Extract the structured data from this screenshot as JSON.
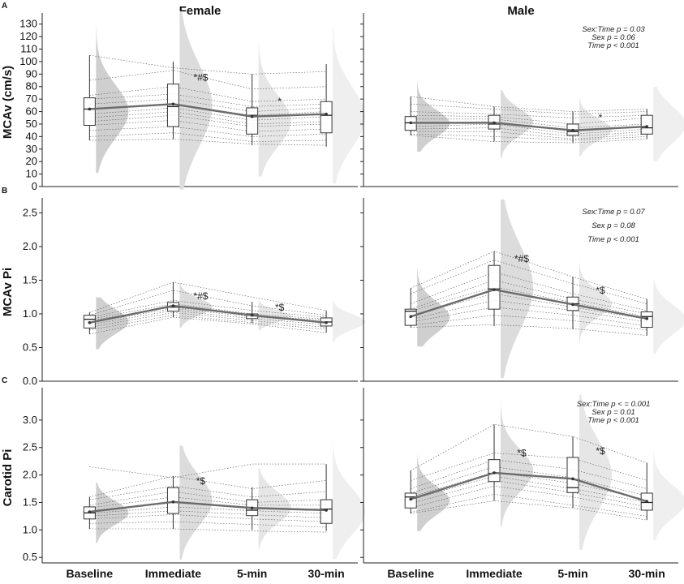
{
  "chart_data": {
    "type": "raincloud-boxplot",
    "columns": [
      "Female",
      "Male"
    ],
    "x_categories": [
      "Baseline",
      "Immediate",
      "5-min",
      "30-min"
    ],
    "rows": [
      {
        "label": "A",
        "ylabel": "MCAv (cm/s)",
        "ylim": [
          0,
          135
        ],
        "yticks": [
          0,
          10,
          20,
          30,
          40,
          50,
          60,
          70,
          80,
          90,
          100,
          110,
          120,
          130
        ],
        "stats_text": [
          "Sex:Time p = 0.03",
          "Sex p = 0.06",
          "Time p < 0.001"
        ],
        "panels": [
          {
            "sex": "Female",
            "means": [
              62,
              66,
              56,
              58
            ],
            "boxes": [
              {
                "min": 37,
                "q1": 49,
                "median": 62,
                "q3": 71,
                "max": 105
              },
              {
                "min": 38,
                "q1": 48,
                "median": 64,
                "q3": 82,
                "max": 100
              },
              {
                "min": 33,
                "q1": 42,
                "median": 57,
                "q3": 63,
                "max": 90
              },
              {
                "min": 32,
                "q1": 43,
                "median": 57,
                "q3": 68,
                "max": 98
              }
            ],
            "significance": [
              "",
              "*#$",
              "*",
              ""
            ],
            "individuals": [
              [
                105,
                95,
                90,
                92
              ],
              [
                85,
                93,
                78,
                80
              ],
              [
                73,
                80,
                68,
                70
              ],
              [
                70,
                74,
                64,
                66
              ],
              [
                66,
                70,
                60,
                63
              ],
              [
                62,
                66,
                57,
                60
              ],
              [
                58,
                63,
                53,
                56
              ],
              [
                55,
                60,
                50,
                52
              ],
              [
                52,
                57,
                48,
                50
              ],
              [
                49,
                53,
                44,
                46
              ],
              [
                45,
                48,
                40,
                42
              ],
              [
                40,
                43,
                36,
                37
              ],
              [
                37,
                38,
                34,
                33
              ]
            ]
          },
          {
            "sex": "Male",
            "means": [
              51,
              51,
              45,
              48
            ],
            "boxes": [
              {
                "min": 41,
                "q1": 45,
                "median": 51,
                "q3": 56,
                "max": 72
              },
              {
                "min": 36,
                "q1": 46,
                "median": 50,
                "q3": 57,
                "max": 64
              },
              {
                "min": 35,
                "q1": 41,
                "median": 44,
                "q3": 50,
                "max": 60
              },
              {
                "min": 38,
                "q1": 42,
                "median": 47,
                "q3": 57,
                "max": 62
              }
            ],
            "significance": [
              "",
              "",
              "*",
              ""
            ],
            "individuals": [
              [
                72,
                64,
                60,
                62
              ],
              [
                66,
                62,
                58,
                60
              ],
              [
                60,
                58,
                55,
                57
              ],
              [
                57,
                56,
                50,
                55
              ],
              [
                54,
                54,
                47,
                50
              ],
              [
                51,
                52,
                44,
                48
              ],
              [
                48,
                50,
                42,
                46
              ],
              [
                46,
                47,
                40,
                44
              ],
              [
                44,
                44,
                38,
                42
              ],
              [
                42,
                40,
                37,
                40
              ],
              [
                41,
                36,
                35,
                38
              ]
            ]
          }
        ]
      },
      {
        "label": "B",
        "ylabel": "MCAv Pi",
        "ylim": [
          0,
          2.65
        ],
        "yticks": [
          0.0,
          0.5,
          1.0,
          1.5,
          2.0,
          2.5
        ],
        "stats_text": [
          "Sex:Time p = 0.07",
          "Sex p = 0.08",
          "Time p < 0.001"
        ],
        "panels": [
          {
            "sex": "Female",
            "means": [
              0.87,
              1.12,
              0.98,
              0.87
            ],
            "boxes": [
              {
                "min": 0.7,
                "q1": 0.79,
                "median": 0.92,
                "q3": 0.98,
                "max": 1.02
              },
              {
                "min": 0.95,
                "q1": 1.04,
                "median": 1.1,
                "q3": 1.17,
                "max": 1.47
              },
              {
                "min": 0.86,
                "q1": 0.93,
                "median": 0.98,
                "q3": 1.0,
                "max": 1.18
              },
              {
                "min": 0.72,
                "q1": 0.82,
                "median": 0.88,
                "q3": 0.94,
                "max": 1.05
              }
            ],
            "significance": [
              "",
              "*#$",
              "*$",
              ""
            ],
            "individuals": [
              [
                1.02,
                1.47,
                1.25,
                1.05
              ],
              [
                0.98,
                1.35,
                1.12,
                0.98
              ],
              [
                0.95,
                1.2,
                1.05,
                0.95
              ],
              [
                0.92,
                1.15,
                1.0,
                0.92
              ],
              [
                0.9,
                1.1,
                0.98,
                0.9
              ],
              [
                0.87,
                1.08,
                0.96,
                0.87
              ],
              [
                0.84,
                1.05,
                0.93,
                0.84
              ],
              [
                0.8,
                1.02,
                0.9,
                0.8
              ],
              [
                0.76,
                0.98,
                0.87,
                0.77
              ],
              [
                0.7,
                0.95,
                0.85,
                0.72
              ]
            ]
          },
          {
            "sex": "Male",
            "means": [
              0.96,
              1.36,
              1.14,
              0.93
            ],
            "boxes": [
              {
                "min": 0.8,
                "q1": 0.83,
                "median": 1.04,
                "q3": 1.07,
                "max": 1.38
              },
              {
                "min": 0.82,
                "q1": 1.07,
                "median": 1.37,
                "q3": 1.72,
                "max": 1.93
              },
              {
                "min": 0.77,
                "q1": 1.05,
                "median": 1.15,
                "q3": 1.25,
                "max": 1.55
              },
              {
                "min": 0.68,
                "q1": 0.8,
                "median": 0.96,
                "q3": 1.03,
                "max": 1.22
              }
            ],
            "significance": [
              "",
              "*#$",
              "*$",
              ""
            ],
            "individuals": [
              [
                1.38,
                1.93,
                1.55,
                1.22
              ],
              [
                1.3,
                1.8,
                1.45,
                1.15
              ],
              [
                1.15,
                1.62,
                1.3,
                1.05
              ],
              [
                1.07,
                1.5,
                1.22,
                1.0
              ],
              [
                1.04,
                1.4,
                1.17,
                0.96
              ],
              [
                0.98,
                1.3,
                1.1,
                0.92
              ],
              [
                0.92,
                1.2,
                1.05,
                0.88
              ],
              [
                0.88,
                1.1,
                0.98,
                0.82
              ],
              [
                0.83,
                0.98,
                0.9,
                0.76
              ],
              [
                0.8,
                0.84,
                0.78,
                0.68
              ]
            ]
          }
        ]
      },
      {
        "label": "C",
        "ylabel": "Carotid Pi",
        "ylim": [
          0.4,
          3.5
        ],
        "yticks": [
          0.5,
          1.0,
          1.5,
          2.0,
          2.5,
          3.0
        ],
        "stats_text": [
          "Sex:Time p < = 0.001",
          "Sex p = 0.01",
          "Time p < 0.001"
        ],
        "panels": [
          {
            "sex": "Female",
            "means": [
              1.33,
              1.51,
              1.4,
              1.36
            ],
            "boxes": [
              {
                "min": 1.02,
                "q1": 1.2,
                "median": 1.31,
                "q3": 1.42,
                "max": 1.6
              },
              {
                "min": 1.02,
                "q1": 1.3,
                "median": 1.5,
                "q3": 1.77,
                "max": 1.98
              },
              {
                "min": 1.0,
                "q1": 1.26,
                "median": 1.36,
                "q3": 1.55,
                "max": 1.78
              },
              {
                "min": 0.98,
                "q1": 1.12,
                "median": 1.38,
                "q3": 1.55,
                "max": 2.2
              }
            ],
            "significance": [
              "",
              "*$",
              "",
              ""
            ],
            "individuals": [
              [
                2.15,
                1.95,
                2.2,
                2.2
              ],
              [
                1.6,
                1.98,
                1.75,
                1.9
              ],
              [
                1.55,
                1.8,
                1.6,
                1.7
              ],
              [
                1.45,
                1.7,
                1.5,
                1.55
              ],
              [
                1.4,
                1.6,
                1.45,
                1.45
              ],
              [
                1.35,
                1.5,
                1.4,
                1.38
              ],
              [
                1.3,
                1.42,
                1.35,
                1.3
              ],
              [
                1.25,
                1.35,
                1.28,
                1.22
              ],
              [
                1.2,
                1.28,
                1.2,
                1.15
              ],
              [
                1.12,
                1.15,
                1.1,
                1.05
              ],
              [
                1.02,
                1.02,
                0.98,
                0.96
              ]
            ]
          },
          {
            "sex": "Male",
            "means": [
              1.56,
              2.04,
              1.93,
              1.52
            ],
            "boxes": [
              {
                "min": 1.3,
                "q1": 1.4,
                "median": 1.6,
                "q3": 1.67,
                "max": 2.08
              },
              {
                "min": 1.53,
                "q1": 1.88,
                "median": 2.03,
                "q3": 2.28,
                "max": 2.92
              },
              {
                "min": 1.4,
                "q1": 1.68,
                "median": 1.77,
                "q3": 2.32,
                "max": 2.7
              },
              {
                "min": 1.18,
                "q1": 1.36,
                "median": 1.5,
                "q3": 1.67,
                "max": 2.22
              }
            ],
            "significance": [
              "",
              "*$",
              "*$",
              ""
            ],
            "individuals": [
              [
                2.08,
                2.92,
                2.7,
                2.22
              ],
              [
                1.9,
                2.4,
                2.3,
                1.9
              ],
              [
                1.75,
                2.28,
                2.1,
                1.75
              ],
              [
                1.67,
                2.15,
                1.95,
                1.62
              ],
              [
                1.6,
                2.05,
                1.85,
                1.55
              ],
              [
                1.55,
                1.98,
                1.75,
                1.5
              ],
              [
                1.48,
                1.9,
                1.68,
                1.42
              ],
              [
                1.4,
                1.8,
                1.6,
                1.35
              ],
              [
                1.32,
                1.65,
                1.45,
                1.25
              ],
              [
                1.3,
                1.53,
                1.4,
                1.18
              ]
            ]
          }
        ]
      }
    ]
  }
}
